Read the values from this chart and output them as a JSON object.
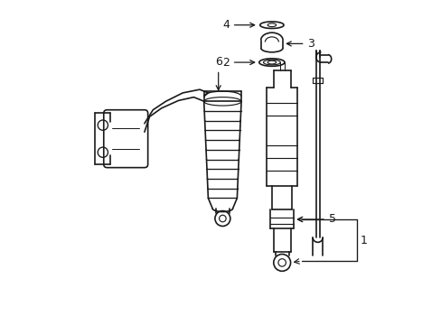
{
  "background_color": "#ffffff",
  "line_color": "#1a1a1a",
  "label_color": "#000000",
  "line_width": 1.2,
  "fig_width": 4.89,
  "fig_height": 3.6,
  "dpi": 100
}
